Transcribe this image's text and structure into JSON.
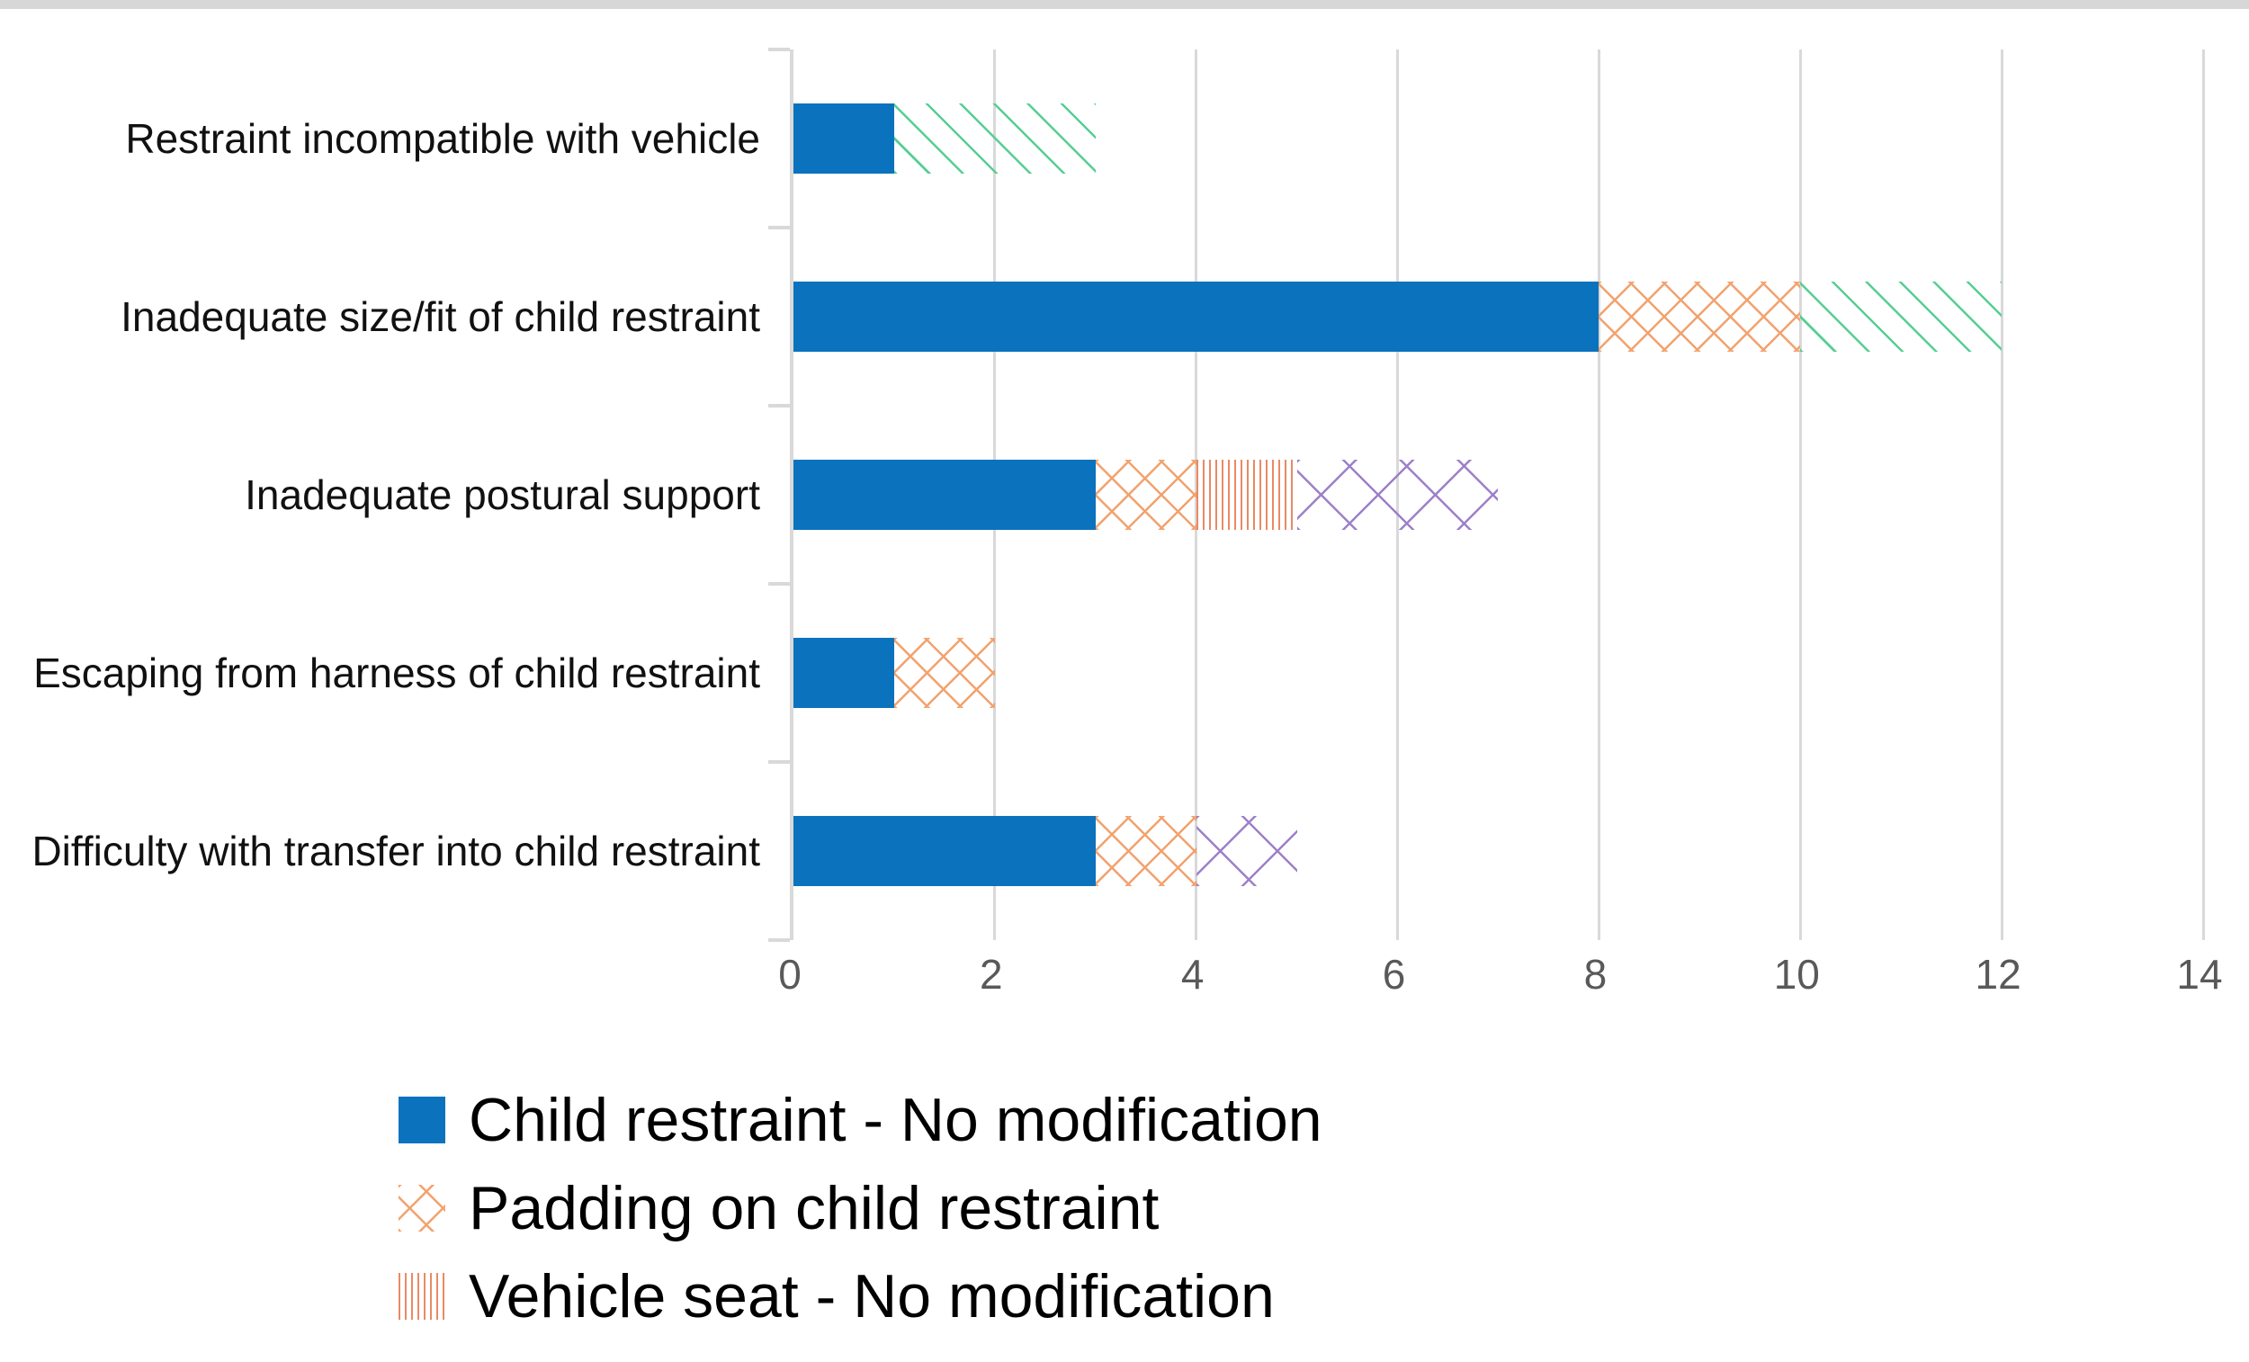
{
  "window": {
    "top_strip_color": "#D7D7D7"
  },
  "axis": {
    "line_color": "#D9D9D9",
    "tick_label_color": "#595959",
    "category_label_color": "#111111"
  },
  "chart_data": {
    "type": "bar",
    "orientation": "horizontal",
    "stacked": true,
    "grid": "on",
    "legend_position": "bottom-left-column",
    "title": "",
    "xlabel": "",
    "ylabel": "",
    "xlim": [
      0,
      14
    ],
    "x_ticks": [
      "0",
      "2",
      "4",
      "6",
      "8",
      "10",
      "12",
      "14"
    ],
    "categories": [
      "Restraint incompatible with vehicle",
      "Inadequate size/fit of child restraint",
      "Inadequate postural support",
      "Escaping from harness of child restraint",
      "Difficulty with transfer into child restraint"
    ],
    "series": [
      {
        "name": "Child restraint - No modification",
        "pattern": "solid",
        "color": "#0B72BE",
        "values": [
          1,
          8,
          3,
          1,
          3
        ],
        "in_legend": true
      },
      {
        "name": "Padding on child restraint",
        "pattern": "crosshatch",
        "color": "#F2A26E",
        "values": [
          0,
          2,
          1,
          1,
          1
        ],
        "in_legend": true
      },
      {
        "name": "Vehicle seat - No modification",
        "pattern": "vertical-lines",
        "color": "#E98A66",
        "values": [
          0,
          0,
          1,
          0,
          0
        ],
        "in_legend": true
      },
      {
        "name": "",
        "pattern": "diagonal",
        "color": "#57CE93",
        "values": [
          2,
          2,
          0,
          0,
          0
        ],
        "in_legend": false
      },
      {
        "name": "",
        "pattern": "diamond",
        "color": "#9D80C9",
        "values": [
          0,
          0,
          2,
          0,
          1
        ],
        "in_legend": false
      }
    ]
  }
}
